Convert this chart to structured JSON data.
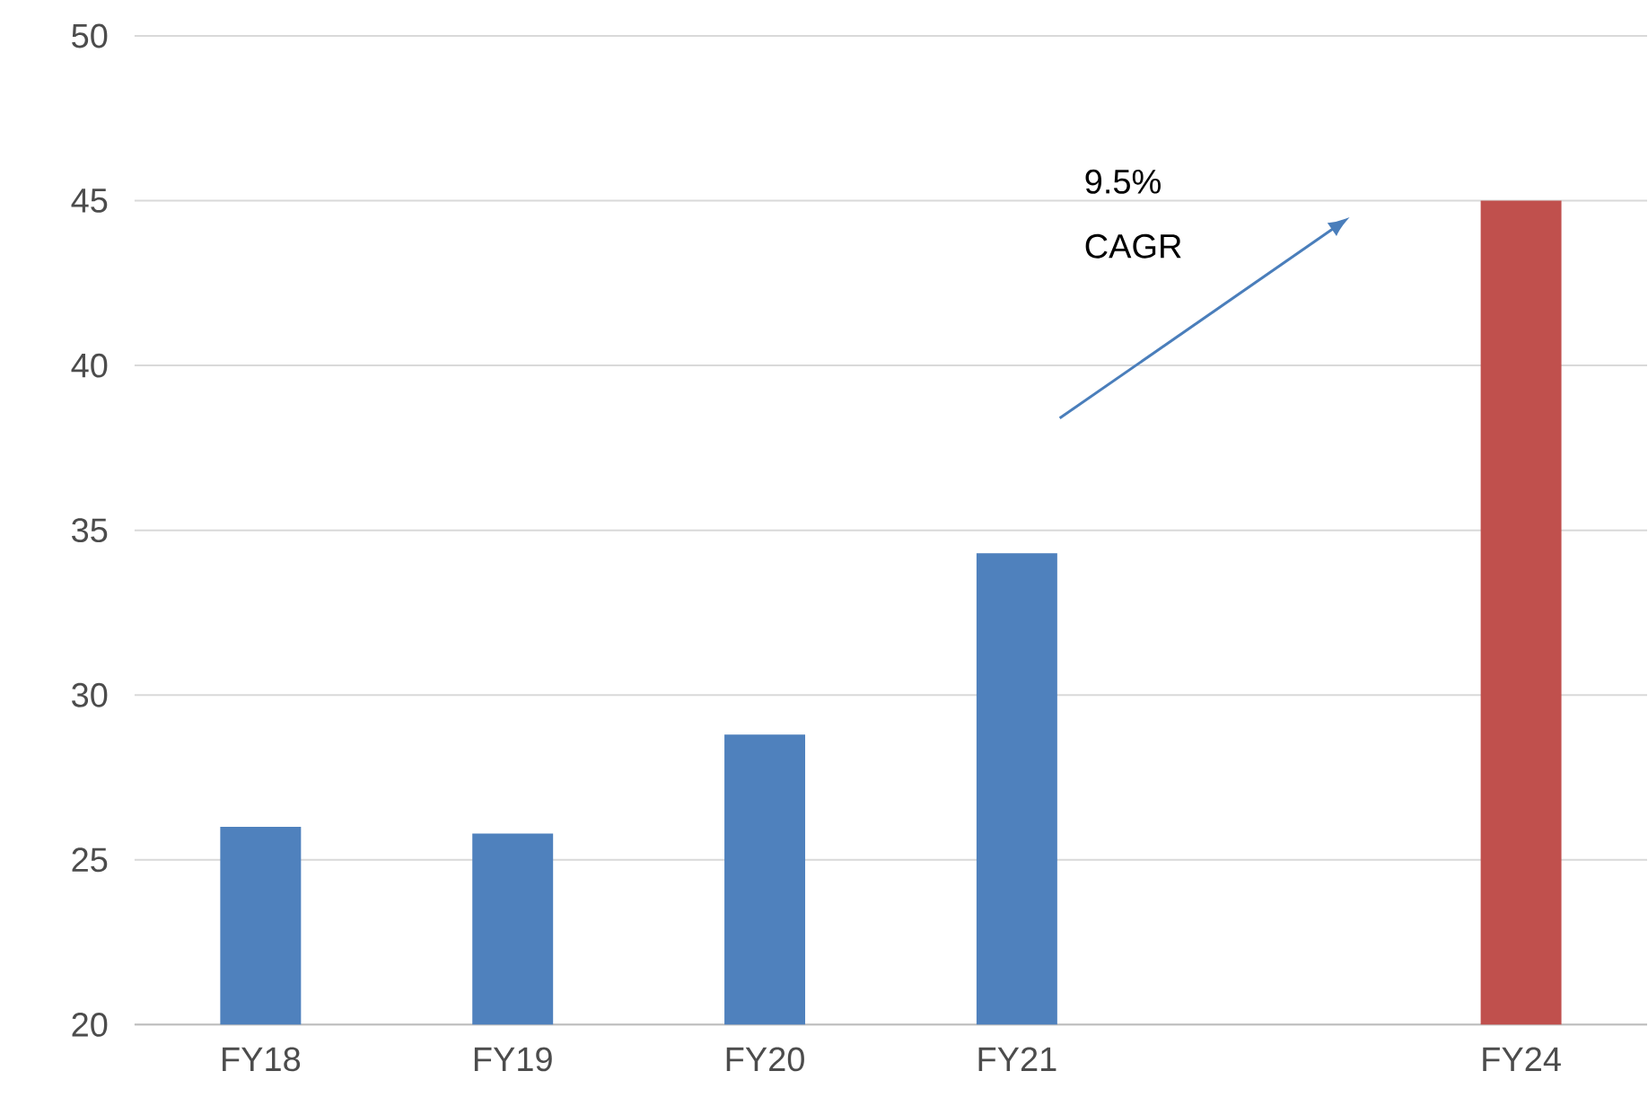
{
  "chart_data": {
    "type": "bar",
    "categories": [
      "FY18",
      "FY19",
      "FY20",
      "FY21",
      null,
      "FY24"
    ],
    "values": [
      26.0,
      25.8,
      28.8,
      34.3,
      null,
      45.0
    ],
    "colors": [
      "#4f81bd",
      "#4f81bd",
      "#4f81bd",
      "#4f81bd",
      "#4f81bd",
      "#c0504d"
    ],
    "ylim": [
      20,
      50
    ],
    "yticks": [
      20,
      25,
      30,
      35,
      40,
      45,
      50
    ],
    "grid": "y",
    "annotations": [
      "9.5% CAGR"
    ]
  }
}
